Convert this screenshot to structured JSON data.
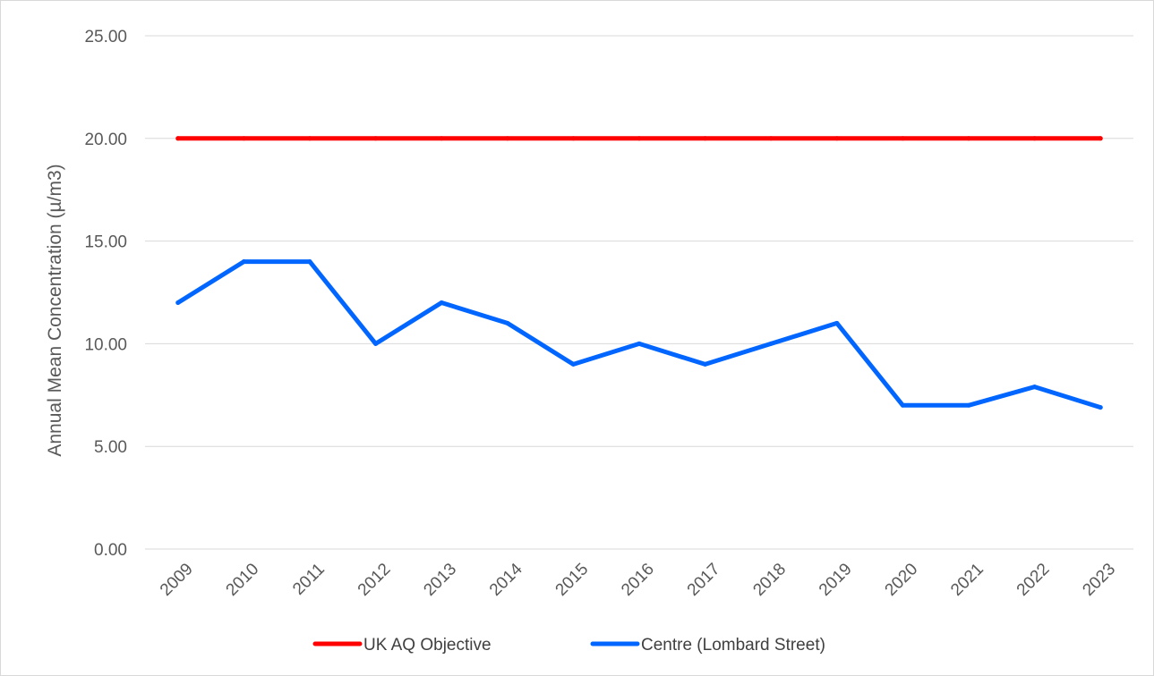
{
  "chart_data": {
    "type": "line",
    "title": "",
    "xlabel": "",
    "ylabel": "Annual Mean Concentration (µ/m3)",
    "ylim": [
      0,
      25
    ],
    "y_ticks": [
      "0.00",
      "5.00",
      "10.00",
      "15.00",
      "20.00",
      "25.00"
    ],
    "categories": [
      "2009",
      "2010",
      "2011",
      "2012",
      "2013",
      "2014",
      "2015",
      "2016",
      "2017",
      "2018",
      "2019",
      "2020",
      "2021",
      "2022",
      "2023"
    ],
    "series": [
      {
        "name": "UK AQ Objective",
        "color": "#ff0000",
        "values": [
          20,
          20,
          20,
          20,
          20,
          20,
          20,
          20,
          20,
          20,
          20,
          20,
          20,
          20,
          20
        ]
      },
      {
        "name": "Centre (Lombard Street)",
        "color": "#0066ff",
        "values": [
          12,
          14,
          14,
          10,
          12,
          11,
          9,
          10,
          9,
          10,
          11,
          7,
          7,
          7.9,
          6.9
        ]
      }
    ],
    "grid": "horizontal",
    "gridline_color": "#d9d9d9",
    "legend": "bottom-center"
  }
}
